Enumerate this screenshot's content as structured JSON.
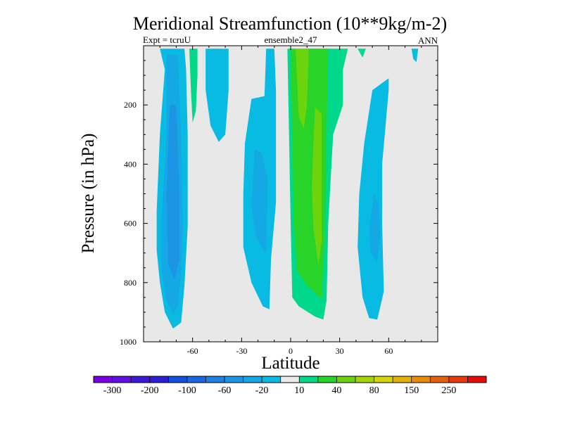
{
  "chart_data": {
    "type": "heatmap",
    "title": "Meridional Streamfunction (10**9kg/m-2)",
    "subtitle_left": "Expt = tcruU",
    "subtitle_center": "ensemble2_47",
    "subtitle_right": "ANN",
    "xlabel": "Latitude",
    "ylabel": "Pressure (in hPa)",
    "xlim": [
      -90,
      90
    ],
    "ylim": [
      1000,
      0
    ],
    "x_ticks": [
      -60,
      -30,
      0,
      30,
      60
    ],
    "y_ticks": [
      200,
      400,
      600,
      800,
      1000
    ],
    "background_color": "#e8e8e8",
    "colorbar": {
      "colors": [
        "#7a00e0",
        "#6010e0",
        "#3f17d6",
        "#2a1ed6",
        "#1450dc",
        "#1a67e1",
        "#1e82e3",
        "#1c95e5",
        "#14a8e4",
        "#09bae2",
        "#eaeaea",
        "#00d88b",
        "#28d428",
        "#6cd40c",
        "#a6d40a",
        "#d4d60a",
        "#e6b20a",
        "#e68c0a",
        "#e6620a",
        "#e63a0a",
        "#e60a0a"
      ],
      "labels": [
        "-300",
        "-200",
        "-100",
        "-60",
        "-20",
        "10",
        "40",
        "80",
        "150",
        "250"
      ]
    },
    "contours": [
      {
        "level": -20,
        "color": "#09bae2",
        "points": [
          [
            -80,
            10
          ],
          [
            -77,
            80
          ],
          [
            -80,
            300
          ],
          [
            -82,
            560
          ],
          [
            -82,
            690
          ],
          [
            -80,
            800
          ],
          [
            -77,
            900
          ],
          [
            -72,
            955
          ],
          [
            -67,
            935
          ],
          [
            -65,
            810
          ],
          [
            -63,
            610
          ],
          [
            -63,
            300
          ],
          [
            -64,
            80
          ],
          [
            -65,
            10
          ]
        ]
      },
      {
        "level": -60,
        "color": "#14a8e4",
        "points": [
          [
            -76,
            30
          ],
          [
            -76,
            300
          ],
          [
            -79,
            600
          ],
          [
            -79,
            760
          ],
          [
            -76,
            860
          ],
          [
            -72,
            905
          ],
          [
            -69,
            880
          ],
          [
            -67,
            760
          ],
          [
            -66,
            600
          ],
          [
            -67,
            300
          ],
          [
            -69,
            30
          ]
        ]
      },
      {
        "level": -100,
        "color": "#1c95e5",
        "points": [
          [
            -74,
            200
          ],
          [
            -76,
            500
          ],
          [
            -75,
            740
          ],
          [
            -71,
            790
          ],
          [
            -68,
            720
          ],
          [
            -68,
            500
          ],
          [
            -70,
            200
          ]
        ]
      },
      {
        "level": -20,
        "color": "#09bae2",
        "points": [
          [
            -52,
            10
          ],
          [
            -52,
            150
          ],
          [
            -49,
            270
          ],
          [
            -44,
            325
          ],
          [
            -40,
            300
          ],
          [
            -38,
            150
          ],
          [
            -38,
            10
          ]
        ]
      },
      {
        "level": -20,
        "color": "#09bae2",
        "points": [
          [
            -15,
            10
          ],
          [
            -16,
            170
          ],
          [
            -24,
            180
          ],
          [
            -28,
            330
          ],
          [
            -29,
            500
          ],
          [
            -29,
            680
          ],
          [
            -24,
            800
          ],
          [
            -17,
            880
          ],
          [
            -13,
            890
          ],
          [
            -12,
            720
          ],
          [
            -9,
            530
          ],
          [
            -9,
            300
          ],
          [
            -9,
            150
          ],
          [
            -10,
            10
          ]
        ]
      },
      {
        "level": -60,
        "color": "#14a8e4",
        "points": [
          [
            -22,
            350
          ],
          [
            -24,
            540
          ],
          [
            -21,
            650
          ],
          [
            -15,
            700
          ],
          [
            -14,
            450
          ],
          [
            -18,
            360
          ]
        ]
      },
      {
        "level": -20,
        "color": "#09bae2",
        "points": [
          [
            50,
            150
          ],
          [
            45,
            330
          ],
          [
            42,
            500
          ],
          [
            41,
            680
          ],
          [
            44,
            850
          ],
          [
            48,
            920
          ],
          [
            53,
            925
          ],
          [
            57,
            830
          ],
          [
            56,
            600
          ],
          [
            56,
            400
          ],
          [
            60,
            150
          ],
          [
            60,
            110
          ]
        ]
      },
      {
        "level": -60,
        "color": "#14a8e4",
        "points": [
          [
            51,
            500
          ],
          [
            48,
            620
          ],
          [
            49,
            700
          ],
          [
            53,
            730
          ],
          [
            55,
            640
          ],
          [
            54,
            540
          ]
        ]
      },
      {
        "level": -20,
        "color": "#09bae2",
        "points": [
          [
            74,
            10
          ],
          [
            75,
            45
          ],
          [
            77,
            55
          ],
          [
            78,
            10
          ]
        ]
      },
      {
        "level": 10,
        "color": "#00d88b",
        "points": [
          [
            -62,
            10
          ],
          [
            -61,
            150
          ],
          [
            -60,
            260
          ],
          [
            -58,
            220
          ],
          [
            -57,
            100
          ],
          [
            -57,
            10
          ]
        ]
      },
      {
        "level": 10,
        "color": "#00d88b",
        "points": [
          [
            -2,
            10
          ],
          [
            -1,
            300
          ],
          [
            0,
            600
          ],
          [
            1,
            850
          ],
          [
            5,
            880
          ],
          [
            15,
            915
          ],
          [
            20,
            925
          ],
          [
            22,
            860
          ],
          [
            23,
            600
          ],
          [
            26,
            300
          ],
          [
            32,
            200
          ],
          [
            32,
            80
          ],
          [
            35,
            10
          ]
        ]
      },
      {
        "level": 40,
        "color": "#28d428",
        "points": [
          [
            0,
            10
          ],
          [
            1,
            300
          ],
          [
            2,
            600
          ],
          [
            4,
            760
          ],
          [
            10,
            810
          ],
          [
            19,
            855
          ],
          [
            21,
            620
          ],
          [
            22,
            300
          ],
          [
            23,
            10
          ]
        ]
      },
      {
        "level": 80,
        "color": "#6cd40c",
        "points": [
          [
            3,
            10
          ],
          [
            4,
            120
          ],
          [
            5,
            240
          ],
          [
            8,
            280
          ],
          [
            10,
            200
          ],
          [
            11,
            50
          ],
          [
            11,
            10
          ]
        ]
      },
      {
        "level": 80,
        "color": "#6cd40c",
        "points": [
          [
            15,
            210
          ],
          [
            14,
            320
          ],
          [
            13,
            480
          ],
          [
            14,
            620
          ],
          [
            17,
            740
          ],
          [
            19,
            660
          ],
          [
            19,
            400
          ],
          [
            19,
            230
          ]
        ]
      },
      {
        "level": 10,
        "color": "#00d88b",
        "points": [
          [
            41,
            10
          ],
          [
            44,
            40
          ],
          [
            46,
            10
          ]
        ]
      }
    ]
  }
}
